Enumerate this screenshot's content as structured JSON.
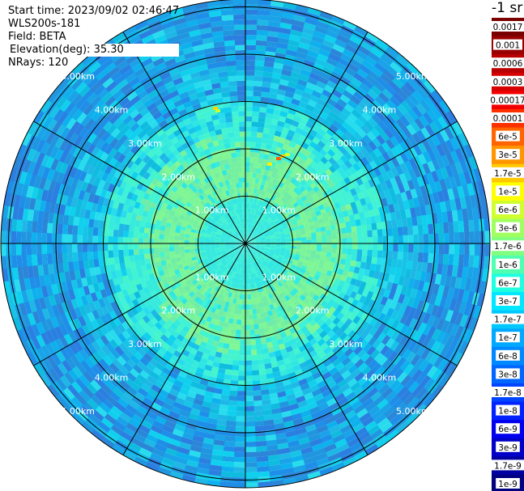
{
  "header": {
    "start_time": "Start time: 2023/09/02 02:46:47",
    "instrument": "WLS200s-181",
    "field": "Field: BETA",
    "elevation_label": "Elevation(deg):",
    "elevation_value": "35.30",
    "nrays": "NRays: 120"
  },
  "colorbar": {
    "unit": "-1 sr",
    "labels": [
      "0.0017",
      "0.001",
      "0.0006",
      "0.0003",
      "0.00017",
      "0.0001",
      "6e-5",
      "3e-5",
      "1.7e-5",
      "1e-5",
      "6e-6",
      "3e-6",
      "1.7e-6",
      "1e-6",
      "6e-7",
      "3e-7",
      "1.7e-7",
      "1e-7",
      "6e-8",
      "3e-8",
      "1.7e-8",
      "1e-8",
      "6e-9",
      "3e-9",
      "1.7e-9",
      "1e-9"
    ],
    "colors": [
      "#7a0000",
      "#990000",
      "#b80000",
      "#d60000",
      "#f20000",
      "#ff3000",
      "#ff6400",
      "#ff9600",
      "#ffc800",
      "#ffff00",
      "#d0ff30",
      "#a0ff60",
      "#80ff80",
      "#50ffb0",
      "#20ffe0",
      "#00e8ff",
      "#00c8ff",
      "#00a8ff",
      "#0088ff",
      "#0066ff",
      "#0044ff",
      "#0022ff",
      "#0000ee",
      "#0000c8",
      "#0000a0",
      "#000080"
    ]
  },
  "chart_data": {
    "type": "heatmap",
    "plot_kind": "PPI polar scan",
    "field": "BETA",
    "ring_labels": [
      "1.00km",
      "2.00km",
      "3.00km",
      "4.00km",
      "5.00km"
    ],
    "ring_ranges_km": [
      1,
      2,
      3,
      4,
      5
    ],
    "spoke_count": 12,
    "rays": 120,
    "colors": {
      "far_range": "#2196e0",
      "mid_range": "#17c4e8",
      "near_range": "#3ff2d8",
      "core": "#7af59a",
      "hotspot": "#ffd200"
    }
  }
}
